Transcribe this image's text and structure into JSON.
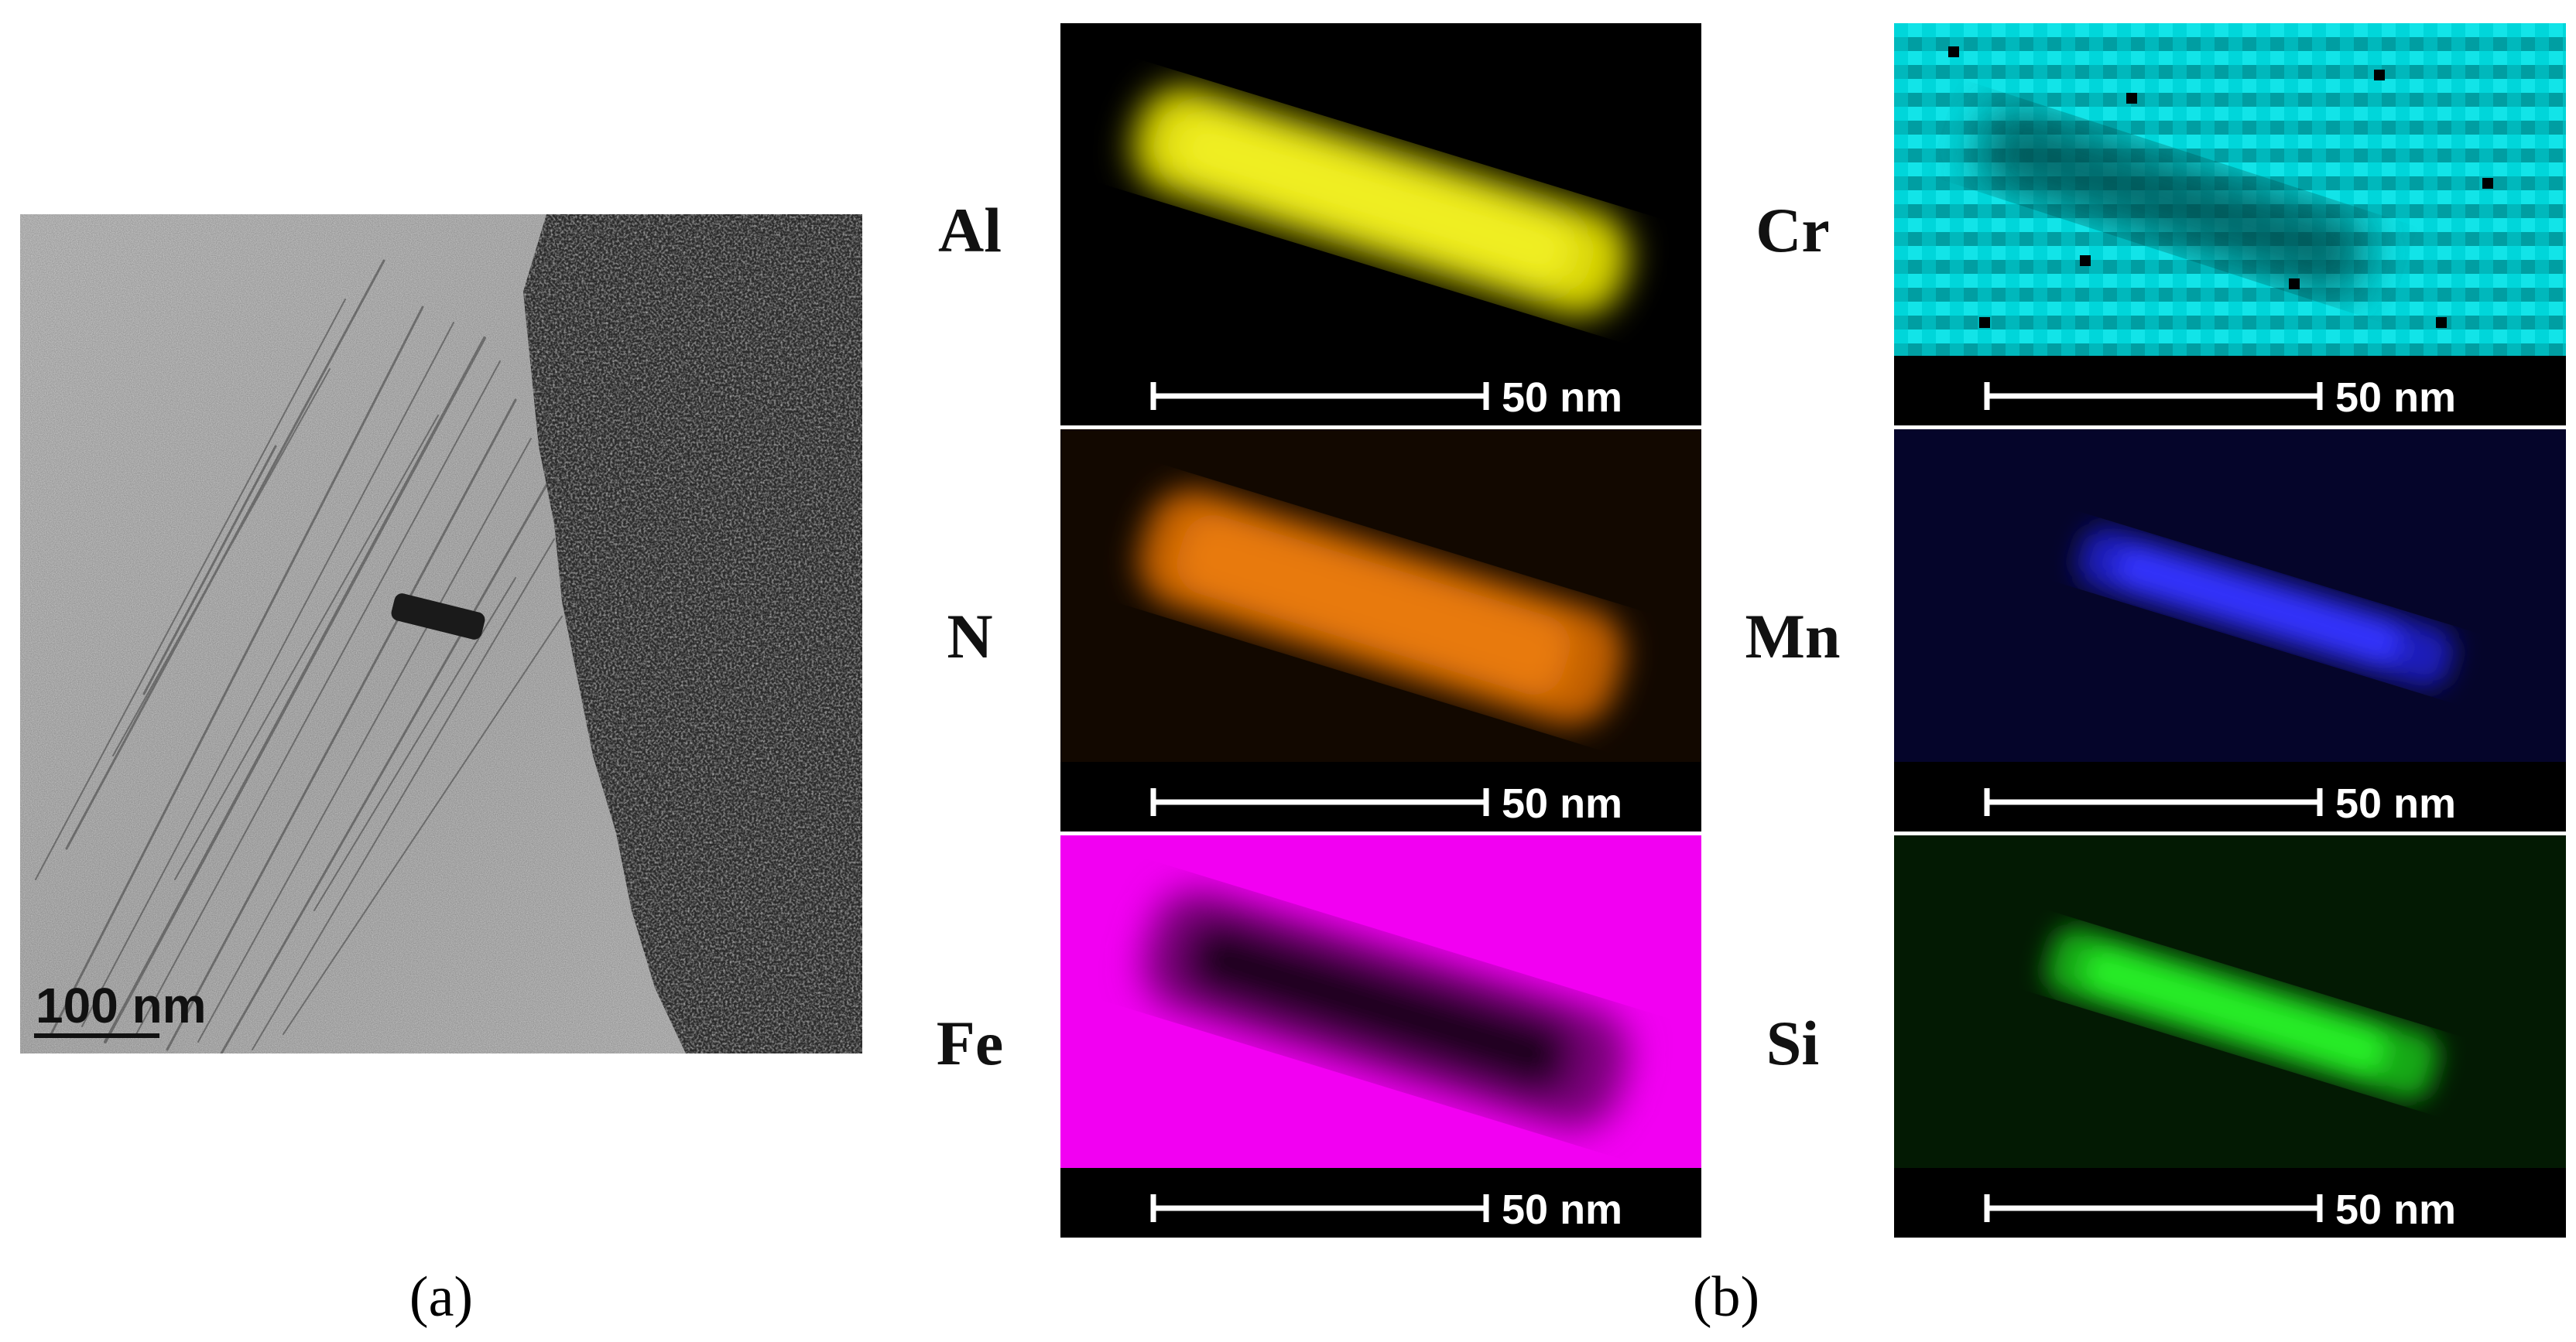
{
  "panel_a": {
    "label": "(a)",
    "scale_bar": "100 nm"
  },
  "panel_b": {
    "label": "(b)",
    "maps": [
      {
        "element": "Al",
        "scale_bar": "50 nm",
        "color": "#e6e000",
        "mode": "bright"
      },
      {
        "element": "N",
        "scale_bar": "50 nm",
        "color": "#e87a00",
        "mode": "bright"
      },
      {
        "element": "Fe",
        "scale_bar": "50 nm",
        "color": "#f200f2",
        "mode": "dark"
      },
      {
        "element": "Cr",
        "scale_bar": "50 nm",
        "color": "#00d0d4",
        "mode": "noise"
      },
      {
        "element": "Mn",
        "scale_bar": "50 nm",
        "color": "#2a2cff",
        "mode": "bright"
      },
      {
        "element": "Si",
        "scale_bar": "50 nm",
        "color": "#1de01d",
        "mode": "bright"
      }
    ]
  }
}
